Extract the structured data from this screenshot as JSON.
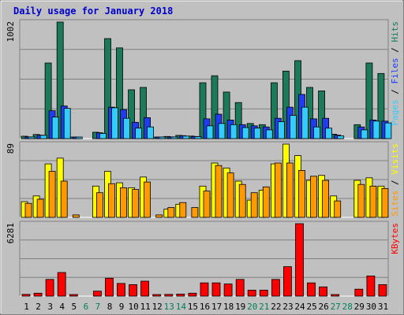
{
  "chart_data": {
    "type": "bar",
    "title": "Daily usage for January 2018",
    "categories": [
      "1",
      "2",
      "3",
      "4",
      "5",
      "6",
      "7",
      "8",
      "9",
      "10",
      "11",
      "12",
      "13",
      "14",
      "15",
      "16",
      "17",
      "18",
      "19",
      "20",
      "21",
      "22",
      "23",
      "24",
      "25",
      "26",
      "27",
      "28",
      "29",
      "30",
      "31"
    ],
    "weekend_days": [
      "6",
      "7",
      "13",
      "14",
      "20",
      "21",
      "27",
      "28"
    ],
    "panels": [
      {
        "name": "hits-files-pages",
        "max_label": "1002",
        "ylim": [
          0,
          1002
        ],
        "right_labels": [
          "Pages",
          "Files",
          "Hits"
        ],
        "series": [
          {
            "name": "Hits",
            "color": "#1a7a5a",
            "values": [
              20,
              35,
              650,
              1002,
              5,
              0,
              55,
              860,
              780,
              420,
              440,
              8,
              18,
              28,
              22,
              480,
              540,
              400,
              310,
              130,
              120,
              480,
              580,
              670,
              440,
              410,
              38,
              0,
              120,
              650,
              560
            ]
          },
          {
            "name": "Files",
            "color": "#1e3cf0",
            "values": [
              15,
              30,
              240,
              280,
              3,
              0,
              50,
              270,
              250,
              140,
              180,
              6,
              15,
              25,
              18,
              170,
              210,
              160,
              120,
              110,
              100,
              175,
              270,
              380,
              170,
              175,
              30,
              0,
              100,
              160,
              150
            ]
          },
          {
            "name": "Pages",
            "color": "#33ccff",
            "values": [
              12,
              28,
              185,
              260,
              2,
              0,
              45,
              265,
              175,
              90,
              100,
              5,
              12,
              22,
              16,
              110,
              130,
              120,
              95,
              90,
              75,
              145,
              200,
              270,
              100,
              90,
              24,
              0,
              75,
              150,
              135
            ]
          }
        ]
      },
      {
        "name": "visits-sites",
        "max_label": "89",
        "ylim": [
          0,
          89
        ],
        "right_labels": [
          "Sites",
          "Visits"
        ],
        "series": [
          {
            "name": "Visits",
            "color": "#ffff00",
            "values": [
              19,
              26,
              65,
              72,
              0,
              0,
              38,
              56,
              42,
              36,
              49,
              0,
              10,
              16,
              0,
              38,
              66,
              60,
              44,
              21,
              33,
              65,
              89,
              75,
              45,
              51,
              26,
              0,
              45,
              48,
              38
            ]
          },
          {
            "name": "Sites",
            "color": "#ff9900",
            "values": [
              17,
              22,
              56,
              44,
              3,
              0,
              30,
              41,
              36,
              34,
              43,
              3,
              12,
              18,
              12,
              32,
              63,
              54,
              40,
              30,
              37,
              66,
              66,
              57,
              50,
              45,
              20,
              0,
              40,
              38,
              35
            ]
          }
        ]
      },
      {
        "name": "kbytes",
        "max_label": "6281",
        "ylim": [
          0,
          6281
        ],
        "right_labels": [
          "KBytes"
        ],
        "series": [
          {
            "name": "KBytes",
            "color": "#ff0000",
            "values": [
              150,
              250,
              1450,
              2050,
              40,
              0,
              430,
              1550,
              1100,
              1000,
              1300,
              40,
              150,
              180,
              250,
              1150,
              1150,
              1050,
              1450,
              520,
              520,
              1450,
              2550,
              6281,
              1150,
              800,
              130,
              0,
              600,
              1750,
              1000
            ]
          }
        ]
      }
    ]
  }
}
